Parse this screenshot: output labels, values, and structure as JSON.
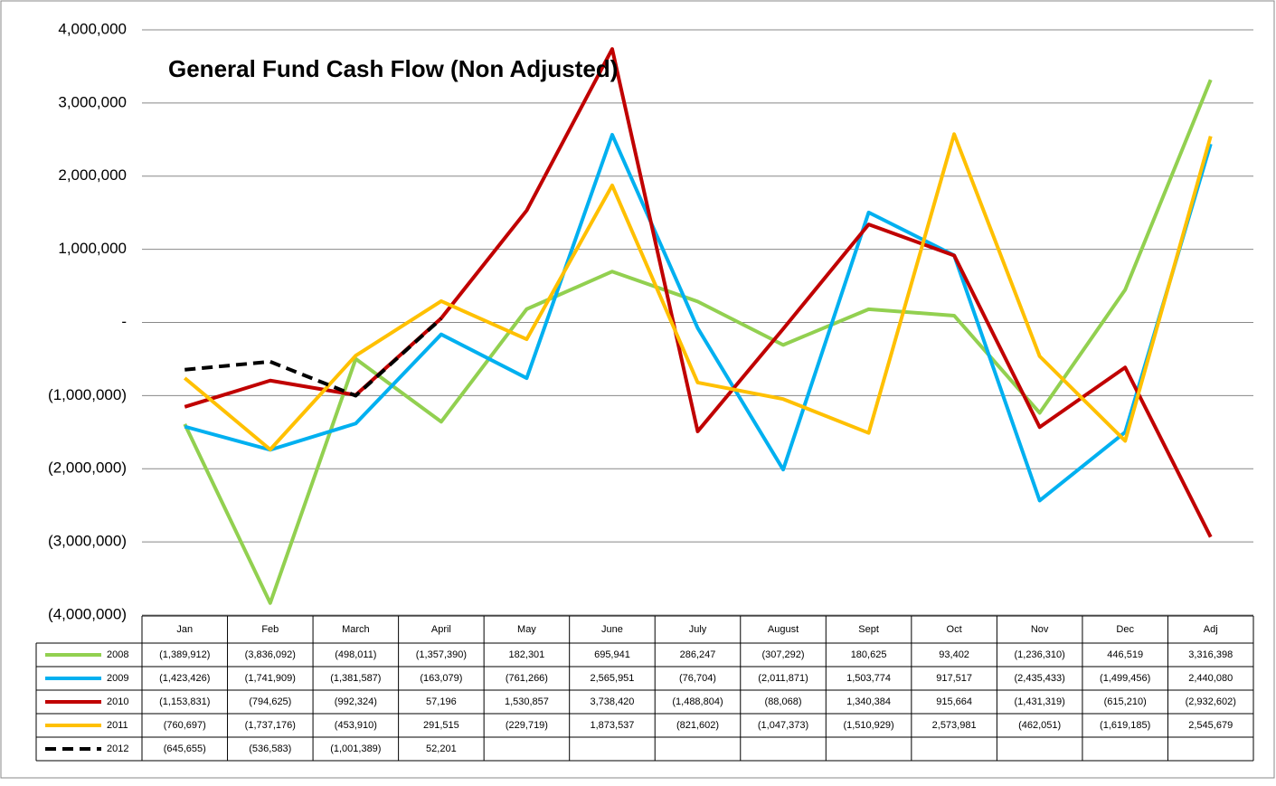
{
  "chart_data": {
    "type": "line",
    "title": "General Fund Cash Flow (Non Adjusted)",
    "categories": [
      "Jan",
      "Feb",
      "March",
      "April",
      "May",
      "June",
      "July",
      "August",
      "Sept",
      "Oct",
      "Nov",
      "Dec",
      "Adj"
    ],
    "ylim": [
      -4000000,
      4000000
    ],
    "yticks": [
      {
        "value": -4000000,
        "label": "(4,000,000)"
      },
      {
        "value": -3000000,
        "label": "(3,000,000)"
      },
      {
        "value": -2000000,
        "label": "(2,000,000)"
      },
      {
        "value": -1000000,
        "label": "(1,000,000)"
      },
      {
        "value": 0,
        "label": "-"
      },
      {
        "value": 1000000,
        "label": "1,000,000"
      },
      {
        "value": 2000000,
        "label": "2,000,000"
      },
      {
        "value": 3000000,
        "label": "3,000,000"
      },
      {
        "value": 4000000,
        "label": "4,000,000"
      }
    ],
    "grid": true,
    "series": [
      {
        "name": "2008",
        "color": "#92d050",
        "line_style": "solid",
        "values": [
          -1389912,
          -3836092,
          -498011,
          -1357390,
          182301,
          695941,
          286247,
          -307292,
          180625,
          93402,
          -1236310,
          446519,
          3316398
        ],
        "value_labels": [
          "(1,389,912)",
          "(3,836,092)",
          "(498,011)",
          "(1,357,390)",
          "182,301",
          "695,941",
          "286,247",
          "(307,292)",
          "180,625",
          "93,402",
          "(1,236,310)",
          "446,519",
          "3,316,398"
        ]
      },
      {
        "name": "2009",
        "color": "#00b0f0",
        "line_style": "solid",
        "values": [
          -1423426,
          -1741909,
          -1381587,
          -163079,
          -761266,
          2565951,
          -76704,
          -2011871,
          1503774,
          917517,
          -2435433,
          -1499456,
          2440080
        ],
        "value_labels": [
          "(1,423,426)",
          "(1,741,909)",
          "(1,381,587)",
          "(163,079)",
          "(761,266)",
          "2,565,951",
          "(76,704)",
          "(2,011,871)",
          "1,503,774",
          "917,517",
          "(2,435,433)",
          "(1,499,456)",
          "2,440,080"
        ]
      },
      {
        "name": "2010",
        "color": "#c00000",
        "line_style": "solid",
        "values": [
          -1153831,
          -794625,
          -992324,
          57196,
          1530857,
          3738420,
          -1488804,
          -88068,
          1340384,
          915664,
          -1431319,
          -615210,
          -2932602
        ],
        "value_labels": [
          "(1,153,831)",
          "(794,625)",
          "(992,324)",
          "57,196",
          "1,530,857",
          "3,738,420",
          "(1,488,804)",
          "(88,068)",
          "1,340,384",
          "915,664",
          "(1,431,319)",
          "(615,210)",
          "(2,932,602)"
        ]
      },
      {
        "name": "2011",
        "color": "#ffc000",
        "line_style": "solid",
        "values": [
          -760697,
          -1737176,
          -453910,
          291515,
          -229719,
          1873537,
          -821602,
          -1047373,
          -1510929,
          2573981,
          -462051,
          -1619185,
          2545679
        ],
        "value_labels": [
          "(760,697)",
          "(1,737,176)",
          "(453,910)",
          "291,515",
          "(229,719)",
          "1,873,537",
          "(821,602)",
          "(1,047,373)",
          "(1,510,929)",
          "2,573,981",
          "(462,051)",
          "(1,619,185)",
          "2,545,679"
        ]
      },
      {
        "name": "2012",
        "color": "#000000",
        "line_style": "dashed",
        "values": [
          -645655,
          -536583,
          -1001389,
          52201,
          null,
          null,
          null,
          null,
          null,
          null,
          null,
          null,
          null
        ],
        "value_labels": [
          "(645,655)",
          "(536,583)",
          "(1,001,389)",
          "52,201",
          null,
          null,
          null,
          null,
          null,
          null,
          null,
          null,
          null
        ]
      }
    ]
  }
}
